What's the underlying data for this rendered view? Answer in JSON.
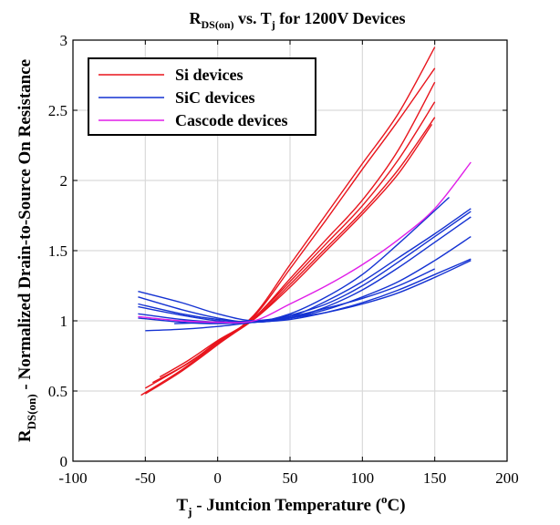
{
  "chart_data": {
    "type": "line",
    "title": {
      "main": "R",
      "sub": "DS(on)",
      "mid": " vs. T",
      "sub2": "j",
      "rest": " for 1200V Devices"
    },
    "xlabel": {
      "main": "T",
      "sub": "j",
      "rest": " - Juntcion Temperature (",
      "sup": "o",
      "unit": "C)"
    },
    "ylabel": {
      "main": "R",
      "sub": "DS(on)",
      "rest": " - Normalized Drain-to-Source On Resistance"
    },
    "xlim": [
      -100,
      200
    ],
    "ylim": [
      0,
      3
    ],
    "xticks": [
      -100,
      -50,
      0,
      50,
      100,
      150,
      200
    ],
    "yticks": [
      0,
      0.5,
      1,
      1.5,
      2,
      2.5,
      3
    ],
    "xtick_labels": [
      "-100",
      "-50",
      "0",
      "50",
      "100",
      "150",
      "200"
    ],
    "ytick_labels": [
      "0",
      "0.5",
      "1",
      "1.5",
      "2",
      "2.5",
      "3"
    ],
    "grid": true,
    "legend_position": "top-left",
    "legend": [
      {
        "label": "Si devices",
        "color": "#e8141c"
      },
      {
        "label": "SiC devices",
        "color": "#1432d2"
      },
      {
        "label": "Cascode devices",
        "color": "#e01ee8"
      }
    ],
    "series": [
      {
        "group": "Si devices",
        "color": "#e8141c",
        "x": [
          -53,
          -25,
          0,
          25,
          50,
          75,
          100,
          125,
          150
        ],
        "y": [
          0.47,
          0.65,
          0.84,
          1.04,
          1.4,
          1.76,
          2.12,
          2.48,
          2.95
        ]
      },
      {
        "group": "Si devices",
        "color": "#e8141c",
        "x": [
          -50,
          -25,
          0,
          25,
          50,
          75,
          100,
          125,
          150
        ],
        "y": [
          0.48,
          0.64,
          0.83,
          1.03,
          1.37,
          1.72,
          2.08,
          2.43,
          2.8
        ]
      },
      {
        "group": "Si devices",
        "color": "#e8141c",
        "x": [
          -40,
          -20,
          0,
          25,
          50,
          75,
          100,
          125,
          150
        ],
        "y": [
          0.6,
          0.72,
          0.86,
          1.02,
          1.3,
          1.58,
          1.86,
          2.22,
          2.7
        ]
      },
      {
        "group": "Si devices",
        "color": "#e8141c",
        "x": [
          -45,
          -20,
          0,
          25,
          50,
          75,
          100,
          125,
          150
        ],
        "y": [
          0.56,
          0.7,
          0.85,
          1.02,
          1.28,
          1.55,
          1.82,
          2.15,
          2.56
        ]
      },
      {
        "group": "Si devices",
        "color": "#e8141c",
        "x": [
          -50,
          -25,
          0,
          25,
          50,
          75,
          100,
          125,
          150
        ],
        "y": [
          0.52,
          0.67,
          0.84,
          1.01,
          1.26,
          1.52,
          1.78,
          2.08,
          2.45
        ]
      },
      {
        "group": "Si devices",
        "color": "#e8141c",
        "x": [
          -40,
          -20,
          0,
          25,
          50,
          75,
          100,
          125,
          148
        ],
        "y": [
          0.58,
          0.7,
          0.85,
          1.01,
          1.24,
          1.5,
          1.76,
          2.05,
          2.4
        ]
      },
      {
        "group": "SiC devices",
        "color": "#1432d2",
        "x": [
          -55,
          -25,
          0,
          25,
          50,
          75,
          100,
          125,
          150,
          175
        ],
        "y": [
          1.21,
          1.13,
          1.05,
          1.0,
          1.03,
          1.14,
          1.28,
          1.45,
          1.62,
          1.8
        ]
      },
      {
        "group": "SiC devices",
        "color": "#1432d2",
        "x": [
          -55,
          -25,
          0,
          25,
          50,
          75,
          100,
          125,
          150,
          175
        ],
        "y": [
          1.17,
          1.08,
          1.02,
          0.99,
          1.04,
          1.12,
          1.25,
          1.42,
          1.6,
          1.78
        ]
      },
      {
        "group": "SiC devices",
        "color": "#1432d2",
        "x": [
          -55,
          -25,
          0,
          25,
          50,
          75,
          100,
          125,
          150,
          175
        ],
        "y": [
          1.12,
          1.05,
          1.01,
          0.99,
          1.02,
          1.1,
          1.22,
          1.38,
          1.56,
          1.74
        ]
      },
      {
        "group": "SiC devices",
        "color": "#1432d2",
        "x": [
          -55,
          -25,
          0,
          25,
          50,
          75,
          100,
          125,
          160
        ],
        "y": [
          1.1,
          1.04,
          1.0,
          0.99,
          1.05,
          1.17,
          1.33,
          1.55,
          1.88
        ]
      },
      {
        "group": "SiC devices",
        "color": "#1432d2",
        "x": [
          -55,
          -25,
          0,
          25,
          50,
          75,
          100,
          125,
          150,
          175
        ],
        "y": [
          1.05,
          1.01,
          0.99,
          0.99,
          1.02,
          1.08,
          1.17,
          1.28,
          1.43,
          1.6
        ]
      },
      {
        "group": "SiC devices",
        "color": "#1432d2",
        "x": [
          -55,
          -25,
          0,
          25,
          50,
          75,
          100,
          125,
          150,
          175
        ],
        "y": [
          1.02,
          0.99,
          0.98,
          0.99,
          1.01,
          1.06,
          1.13,
          1.22,
          1.33,
          1.44
        ]
      },
      {
        "group": "SiC devices",
        "color": "#1432d2",
        "x": [
          -50,
          -25,
          0,
          25,
          50,
          75,
          100,
          125,
          150,
          175
        ],
        "y": [
          0.93,
          0.94,
          0.96,
          0.99,
          1.02,
          1.06,
          1.12,
          1.2,
          1.31,
          1.43
        ]
      },
      {
        "group": "SiC devices",
        "color": "#1432d2",
        "x": [
          -30,
          0,
          25,
          50,
          75,
          100,
          125,
          150
        ],
        "y": [
          0.98,
          0.99,
          1.0,
          1.03,
          1.09,
          1.16,
          1.25,
          1.37
        ]
      },
      {
        "group": "Cascode devices",
        "color": "#e01ee8",
        "x": [
          -55,
          -25,
          0,
          25,
          50,
          75,
          100,
          125,
          150,
          175
        ],
        "y": [
          1.03,
          1.0,
          0.99,
          1.0,
          1.12,
          1.25,
          1.4,
          1.58,
          1.8,
          2.13
        ]
      }
    ]
  }
}
